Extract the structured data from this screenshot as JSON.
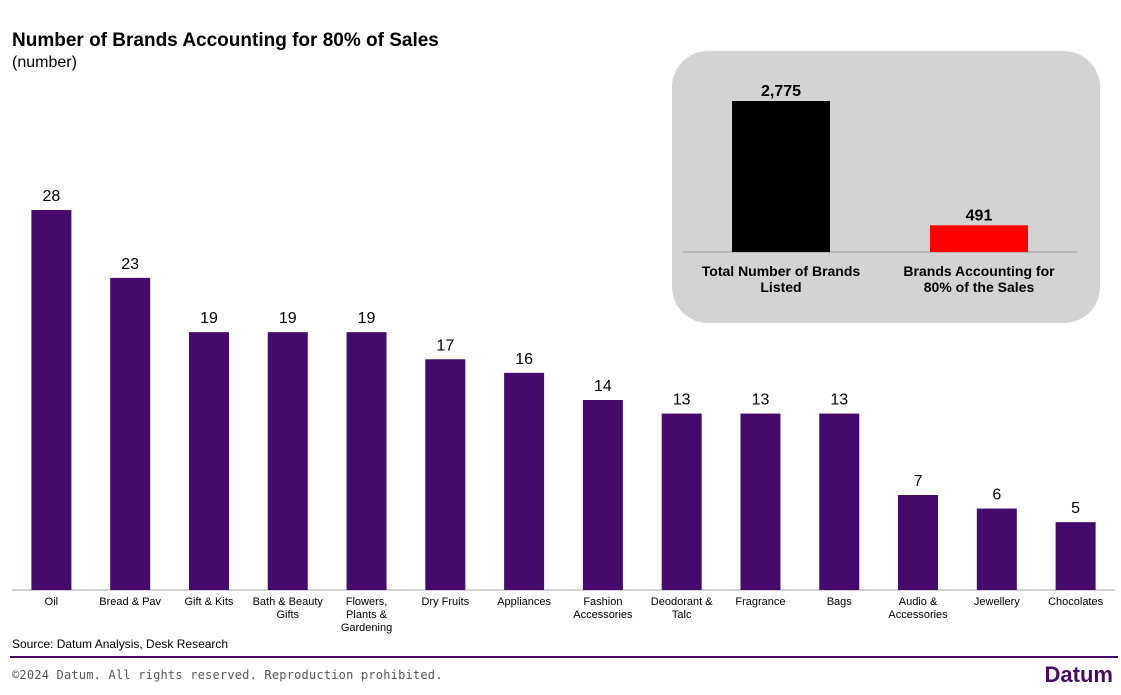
{
  "header": {
    "title": "Number of Brands Accounting for 80% of Sales",
    "subtitle": "(number)"
  },
  "chart_data": [
    {
      "type": "bar",
      "title": "Number of Brands Accounting for 80% of Sales",
      "ylabel": "(number)",
      "categories": [
        [
          "Oil"
        ],
        [
          "Bread & Pav"
        ],
        [
          "Gift & Kits"
        ],
        [
          "Bath & Beauty",
          "Gifts"
        ],
        [
          "Flowers,",
          "Plants &",
          "Gardening"
        ],
        [
          "Dry Fruits"
        ],
        [
          "Appliances"
        ],
        [
          "Fashion",
          "Accessories"
        ],
        [
          "Deodorant &",
          "Talc"
        ],
        [
          "Fragrance"
        ],
        [
          "Bags"
        ],
        [
          "Audio &",
          "Accessories"
        ],
        [
          "Jewellery"
        ],
        [
          "Chocolates"
        ]
      ],
      "values": [
        28,
        23,
        19,
        19,
        19,
        17,
        16,
        14,
        13,
        13,
        13,
        7,
        6,
        5
      ],
      "ylim": [
        0,
        28
      ],
      "bar_color": "#450a6b",
      "grid": false
    },
    {
      "type": "bar",
      "title": "",
      "categories": [
        [
          "Total Number of Brands",
          "Listed"
        ],
        [
          "Brands Accounting for",
          "80% of the Sales"
        ]
      ],
      "values": [
        2775,
        491
      ],
      "value_labels": [
        "2,775",
        "491"
      ],
      "ylim": [
        0,
        2775
      ],
      "bar_colors": [
        "#000000",
        "#ff0000"
      ],
      "background": "#d3d3d3"
    }
  ],
  "footer": {
    "source": "Source: Datum Analysis, Desk Research",
    "copyright": "©2024 Datum. All rights reserved. Reproduction prohibited.",
    "brand": "Datum",
    "brand_color": "#4a0a63"
  }
}
